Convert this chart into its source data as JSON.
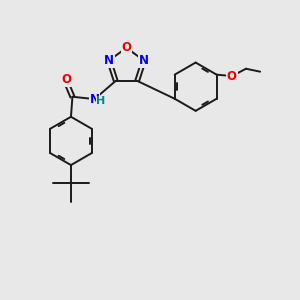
{
  "bg_color": "#e8e8e8",
  "bond_color": "#1a1a1a",
  "bond_width": 1.4,
  "atom_colors": {
    "N": "#0000ee",
    "O": "#ee0000",
    "H": "#008888"
  },
  "font_size": 8.5
}
